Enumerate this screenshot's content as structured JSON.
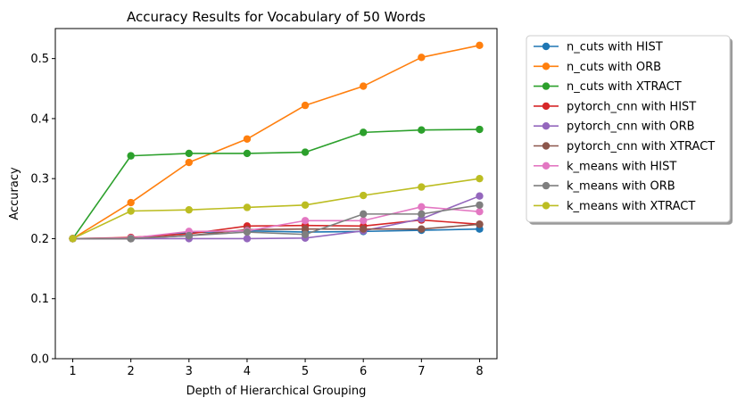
{
  "chart_data": {
    "type": "line",
    "title": "Accuracy Results for Vocabulary of 50 Words",
    "xlabel": "Depth of Hierarchical Grouping",
    "ylabel": "Accuracy",
    "x": [
      1,
      2,
      3,
      4,
      5,
      6,
      7,
      8
    ],
    "xticks": [
      "1",
      "2",
      "3",
      "4",
      "5",
      "6",
      "7",
      "8"
    ],
    "xlim": [
      0.7,
      8.3
    ],
    "ylim": [
      0.0,
      0.55
    ],
    "yticks": [
      "0.0",
      "0.1",
      "0.2",
      "0.3",
      "0.4",
      "0.5"
    ],
    "grid": false,
    "legend_position": "outside-right-top",
    "series": [
      {
        "name": "n_cuts with HIST",
        "color": "#1f77b4",
        "values": [
          0.2,
          0.2,
          0.21,
          0.213,
          0.211,
          0.212,
          0.214,
          0.216
        ]
      },
      {
        "name": "n_cuts with ORB",
        "color": "#ff7f0e",
        "values": [
          0.2,
          0.26,
          0.327,
          0.366,
          0.422,
          0.454,
          0.502,
          0.522
        ]
      },
      {
        "name": "n_cuts with XTRACT",
        "color": "#2ca02c",
        "values": [
          0.2,
          0.338,
          0.342,
          0.342,
          0.344,
          0.377,
          0.381,
          0.382
        ]
      },
      {
        "name": "pytorch_cnn with HIST",
        "color": "#d62728",
        "values": [
          0.2,
          0.202,
          0.208,
          0.221,
          0.222,
          0.221,
          0.231,
          0.224
        ]
      },
      {
        "name": "pytorch_cnn with ORB",
        "color": "#9467bd",
        "values": [
          0.2,
          0.2,
          0.2,
          0.2,
          0.201,
          0.213,
          0.233,
          0.271
        ]
      },
      {
        "name": "pytorch_cnn with XTRACT",
        "color": "#8c564b",
        "values": [
          0.2,
          0.2,
          0.205,
          0.215,
          0.216,
          0.216,
          0.216,
          0.224
        ]
      },
      {
        "name": "k_means with HIST",
        "color": "#e377c2",
        "values": [
          0.2,
          0.201,
          0.212,
          0.213,
          0.23,
          0.23,
          0.253,
          0.245
        ]
      },
      {
        "name": "k_means with ORB",
        "color": "#7f7f7f",
        "values": [
          0.2,
          0.2,
          0.205,
          0.211,
          0.207,
          0.241,
          0.241,
          0.256
        ]
      },
      {
        "name": "k_means with XTRACT",
        "color": "#bcbd22",
        "values": [
          0.2,
          0.246,
          0.248,
          0.252,
          0.256,
          0.272,
          0.286,
          0.3
        ]
      }
    ]
  }
}
